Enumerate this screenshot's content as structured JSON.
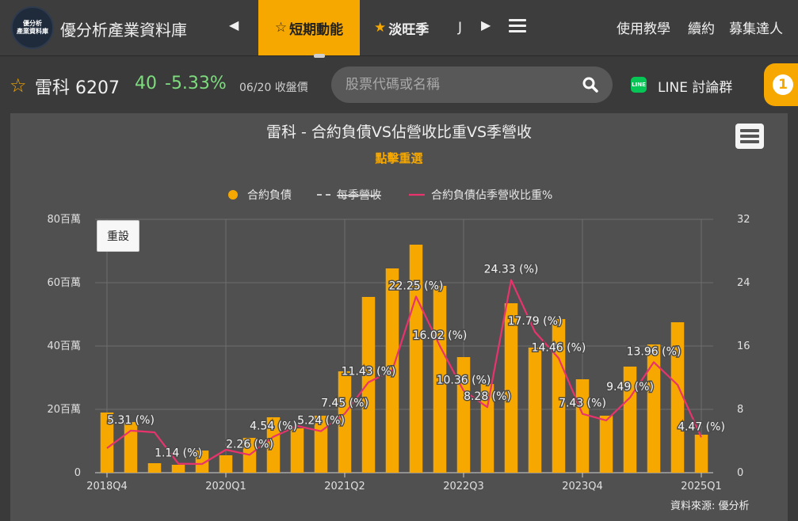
{
  "header": {
    "logo_line1": "優分析",
    "logo_line2": "產業資料庫",
    "app_title": "優分析產業資料庫",
    "tabs": [
      {
        "label": "短期動能",
        "active": true
      },
      {
        "label": "淡旺季",
        "active": false
      }
    ],
    "tab_clipped": "J",
    "links": [
      "使用教學",
      "續約",
      "募集達人"
    ],
    "accent_color": "#f6a800"
  },
  "stock": {
    "name": "雷科 6207",
    "price": "40",
    "change": "-5.33%",
    "date_label": "06/20 收盤價"
  },
  "search": {
    "placeholder": "股票代碼或名稱"
  },
  "line": {
    "icon_text": "LINE",
    "label": "LINE 討論群"
  },
  "badge": {
    "count": "1"
  },
  "chart_data": {
    "type": "bar",
    "title": "雷科 - 合約負債VS佔營收比重VS季營收",
    "subtitle": "點擊重選",
    "reset_label": "重設",
    "source": "資料來源: 優分析",
    "legend": {
      "position": "top-center",
      "items": [
        {
          "name": "合約負債",
          "color": "#f6a800",
          "symbol": "dot",
          "hidden": false
        },
        {
          "name": "每季營收",
          "color": "#cccccc",
          "symbol": "dash",
          "hidden": true
        },
        {
          "name": "合約負債佔季營收比重%",
          "color": "#e8336d",
          "symbol": "line",
          "hidden": false
        }
      ]
    },
    "grid": true,
    "y_left": {
      "ticks": [
        0,
        20,
        40,
        60,
        80
      ],
      "tick_labels": [
        "0",
        "20百萬",
        "40百萬",
        "60百萬",
        "80百萬"
      ],
      "ylim": [
        0,
        80
      ]
    },
    "y_right": {
      "ticks": [
        0,
        8,
        16,
        24,
        32
      ],
      "tick_labels": [
        "0",
        "8",
        "16",
        "24",
        "32"
      ],
      "ylim": [
        0,
        32
      ]
    },
    "x_tick_labels": [
      {
        "index": 0,
        "label": "2018Q4"
      },
      {
        "index": 5,
        "label": "2020Q1"
      },
      {
        "index": 10,
        "label": "2021Q2"
      },
      {
        "index": 15,
        "label": "2022Q3"
      },
      {
        "index": 20,
        "label": "2023Q4"
      },
      {
        "index": 25,
        "label": "2025Q1"
      }
    ],
    "bar_series": {
      "name": "合約負債",
      "color": "#f6a800",
      "values": [
        19,
        16,
        3,
        2.5,
        7,
        5.5,
        11,
        17.5,
        14,
        18,
        32,
        55.5,
        64.5,
        72,
        59,
        36.5,
        28,
        53.5,
        39.5,
        48.5,
        29.5,
        18,
        33.5,
        40.5,
        47.5,
        12
      ]
    },
    "line_series": {
      "name": "合約負債佔季營收比重%",
      "color": "#e8336d",
      "values": [
        3.1,
        5.31,
        5.1,
        1.14,
        1.1,
        2.9,
        2.26,
        4.54,
        5.9,
        5.24,
        7.45,
        11.43,
        12.9,
        22.25,
        16.02,
        10.36,
        8.28,
        24.33,
        17.79,
        14.46,
        7.43,
        6.6,
        9.49,
        13.96,
        11.1,
        4.47
      ]
    },
    "data_labels": [
      {
        "index": 1,
        "text": "5.31 (%)"
      },
      {
        "index": 3,
        "text": "1.14 (%)"
      },
      {
        "index": 6,
        "text": "2.26 (%)"
      },
      {
        "index": 7,
        "text": "4.54 (%)"
      },
      {
        "index": 9,
        "text": "5.24 (%)"
      },
      {
        "index": 10,
        "text": "7.45 (%)"
      },
      {
        "index": 11,
        "text": "11.43 (%)"
      },
      {
        "index": 13,
        "text": "22.25 (%)"
      },
      {
        "index": 14,
        "text": "16.02 (%)"
      },
      {
        "index": 15,
        "text": "10.36 (%)"
      },
      {
        "index": 16,
        "text": "8.28 (%)"
      },
      {
        "index": 17,
        "text": "24.33 (%)"
      },
      {
        "index": 18,
        "text": "17.79 (%)"
      },
      {
        "index": 19,
        "text": "14.46 (%)"
      },
      {
        "index": 20,
        "text": "7.43 (%)"
      },
      {
        "index": 22,
        "text": "9.49 (%)"
      },
      {
        "index": 23,
        "text": "13.96 (%)"
      },
      {
        "index": 25,
        "text": "4.47 (%)"
      }
    ]
  }
}
